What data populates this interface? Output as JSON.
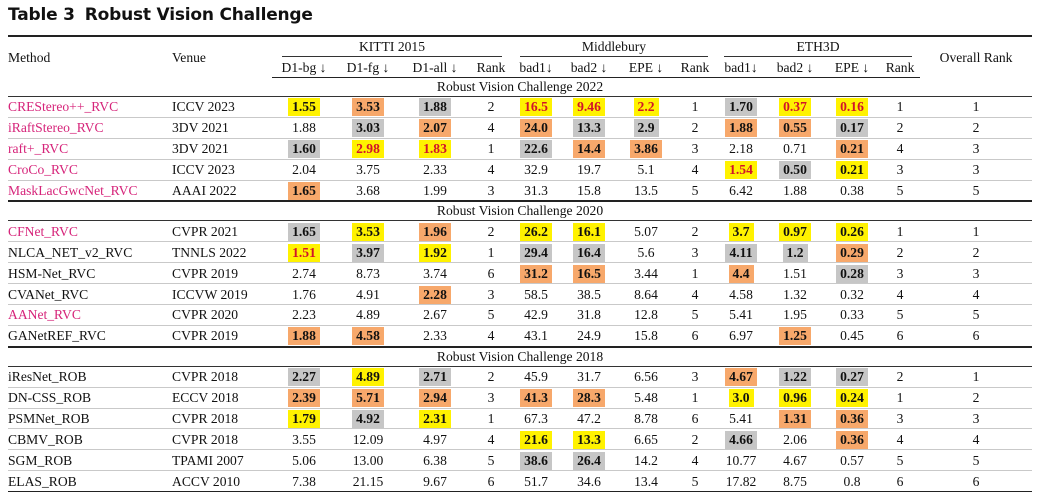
{
  "caption": {
    "label": "Table 3",
    "title": "Robust Vision Challenge"
  },
  "headers": {
    "method": "Method",
    "venue": "Venue",
    "groups": [
      "KITTI 2015",
      "Middlebury",
      "ETH3D"
    ],
    "overall": "Overall Rank",
    "kitti_cols": [
      "D1-bg ↓",
      "D1-fg ↓",
      "D1-all ↓",
      "Rank"
    ],
    "mb_cols": [
      "bad1↓",
      "bad2 ↓",
      "EPE ↓",
      "Rank"
    ],
    "eth_cols": [
      "bad1↓",
      "bad2 ↓",
      "EPE ↓",
      "Rank"
    ]
  },
  "sections": [
    {
      "title": "Robust Vision Challenge 2022",
      "rows": [
        {
          "method": "CREStereo++_RVC",
          "pink": true,
          "venue": "ICCV 2023",
          "cells": [
            {
              "v": "1.55",
              "s": "y",
              "b": true
            },
            {
              "v": "3.53",
              "s": "o",
              "b": true
            },
            {
              "v": "1.88",
              "s": "g",
              "b": true
            },
            {
              "v": "2"
            },
            {
              "v": "16.5",
              "s": "y",
              "b": true,
              "r": true
            },
            {
              "v": "9.46",
              "s": "y",
              "b": true,
              "r": true
            },
            {
              "v": "2.2",
              "s": "y",
              "b": true,
              "r": true
            },
            {
              "v": "1"
            },
            {
              "v": "1.70",
              "s": "g",
              "b": true
            },
            {
              "v": "0.37",
              "s": "y",
              "b": true,
              "r": true
            },
            {
              "v": "0.16",
              "s": "y",
              "b": true,
              "r": true
            },
            {
              "v": "1"
            }
          ],
          "overall": "1"
        },
        {
          "method": "iRaftStereo_RVC",
          "pink": true,
          "venue": "3DV 2021",
          "cells": [
            {
              "v": "1.88"
            },
            {
              "v": "3.03",
              "s": "g",
              "b": true
            },
            {
              "v": "2.07",
              "s": "o",
              "b": true
            },
            {
              "v": "4"
            },
            {
              "v": "24.0",
              "s": "o",
              "b": true
            },
            {
              "v": "13.3",
              "s": "g",
              "b": true
            },
            {
              "v": "2.9",
              "s": "g",
              "b": true
            },
            {
              "v": "2"
            },
            {
              "v": "1.88",
              "s": "o",
              "b": true
            },
            {
              "v": "0.55",
              "s": "o",
              "b": true
            },
            {
              "v": "0.17",
              "s": "g",
              "b": true
            },
            {
              "v": "2"
            }
          ],
          "overall": "2"
        },
        {
          "method": "raft+_RVC",
          "pink": true,
          "venue": "3DV 2021",
          "cells": [
            {
              "v": "1.60",
              "s": "g",
              "b": true
            },
            {
              "v": "2.98",
              "s": "y",
              "b": true,
              "r": true
            },
            {
              "v": "1.83",
              "s": "y",
              "b": true,
              "r": true
            },
            {
              "v": "1"
            },
            {
              "v": "22.6",
              "s": "g",
              "b": true
            },
            {
              "v": "14.4",
              "s": "o",
              "b": true
            },
            {
              "v": "3.86",
              "s": "o",
              "b": true
            },
            {
              "v": "3"
            },
            {
              "v": "2.18"
            },
            {
              "v": "0.71"
            },
            {
              "v": "0.21",
              "s": "o",
              "b": true
            },
            {
              "v": "4"
            }
          ],
          "overall": "3"
        },
        {
          "method": "CroCo_RVC",
          "pink": true,
          "venue": "ICCV 2023",
          "cells": [
            {
              "v": "2.04"
            },
            {
              "v": "3.75"
            },
            {
              "v": "2.33"
            },
            {
              "v": "4"
            },
            {
              "v": "32.9"
            },
            {
              "v": "19.7"
            },
            {
              "v": "5.1"
            },
            {
              "v": "4"
            },
            {
              "v": "1.54",
              "s": "y",
              "b": true,
              "r": true
            },
            {
              "v": "0.50",
              "s": "g",
              "b": true
            },
            {
              "v": "0.21",
              "s": "y",
              "b": true
            },
            {
              "v": "3"
            }
          ],
          "overall": "3"
        },
        {
          "method": "MaskLacGwcNet_RVC",
          "pink": true,
          "venue": "AAAI 2022",
          "cells": [
            {
              "v": "1.65",
              "s": "o",
              "b": true
            },
            {
              "v": "3.68"
            },
            {
              "v": "1.99"
            },
            {
              "v": "3"
            },
            {
              "v": "31.3"
            },
            {
              "v": "15.8"
            },
            {
              "v": "13.5"
            },
            {
              "v": "5"
            },
            {
              "v": "6.42"
            },
            {
              "v": "1.88"
            },
            {
              "v": "0.38"
            },
            {
              "v": "5"
            }
          ],
          "overall": "5"
        }
      ]
    },
    {
      "title": "Robust Vision Challenge 2020",
      "rows": [
        {
          "method": "CFNet_RVC",
          "pink": true,
          "venue": "CVPR 2021",
          "cells": [
            {
              "v": "1.65",
              "s": "g",
              "b": true
            },
            {
              "v": "3.53",
              "s": "y",
              "b": true
            },
            {
              "v": "1.96",
              "s": "o",
              "b": true
            },
            {
              "v": "2"
            },
            {
              "v": "26.2",
              "s": "y",
              "b": true
            },
            {
              "v": "16.1",
              "s": "y",
              "b": true
            },
            {
              "v": "5.07"
            },
            {
              "v": "2"
            },
            {
              "v": "3.7",
              "s": "y",
              "b": true
            },
            {
              "v": "0.97",
              "s": "y",
              "b": true
            },
            {
              "v": "0.26",
              "s": "y",
              "b": true
            },
            {
              "v": "1"
            }
          ],
          "overall": "1"
        },
        {
          "method": "NLCA_NET_v2_RVC",
          "venue": "TNNLS 2022",
          "cells": [
            {
              "v": "1.51",
              "s": "y",
              "b": true,
              "r": true
            },
            {
              "v": "3.97",
              "s": "g",
              "b": true
            },
            {
              "v": "1.92",
              "s": "y",
              "b": true
            },
            {
              "v": "1"
            },
            {
              "v": "29.4",
              "s": "g",
              "b": true
            },
            {
              "v": "16.4",
              "s": "g",
              "b": true
            },
            {
              "v": "5.6"
            },
            {
              "v": "3"
            },
            {
              "v": "4.11",
              "s": "g",
              "b": true
            },
            {
              "v": "1.2",
              "s": "g",
              "b": true
            },
            {
              "v": "0.29",
              "s": "o",
              "b": true
            },
            {
              "v": "2"
            }
          ],
          "overall": "2"
        },
        {
          "method": "HSM-Net_RVC",
          "venue": "CVPR 2019",
          "cells": [
            {
              "v": "2.74"
            },
            {
              "v": "8.73"
            },
            {
              "v": "3.74"
            },
            {
              "v": "6"
            },
            {
              "v": "31.2",
              "s": "o",
              "b": true
            },
            {
              "v": "16.5",
              "s": "o",
              "b": true
            },
            {
              "v": "3.44"
            },
            {
              "v": "1"
            },
            {
              "v": "4.4",
              "s": "o",
              "b": true
            },
            {
              "v": "1.51"
            },
            {
              "v": "0.28",
              "s": "g",
              "b": true
            },
            {
              "v": "3"
            }
          ],
          "overall": "3"
        },
        {
          "method": "CVANet_RVC",
          "venue": "ICCVW 2019",
          "cells": [
            {
              "v": "1.76"
            },
            {
              "v": "4.91"
            },
            {
              "v": "2.28",
              "s": "o",
              "b": true
            },
            {
              "v": "3"
            },
            {
              "v": "58.5"
            },
            {
              "v": "38.5"
            },
            {
              "v": "8.64"
            },
            {
              "v": "4"
            },
            {
              "v": "4.58"
            },
            {
              "v": "1.32"
            },
            {
              "v": "0.32"
            },
            {
              "v": "4"
            }
          ],
          "overall": "4"
        },
        {
          "method": "AANet_RVC",
          "pink": true,
          "venue": "CVPR 2020",
          "cells": [
            {
              "v": "2.23"
            },
            {
              "v": "4.89"
            },
            {
              "v": "2.67"
            },
            {
              "v": "5"
            },
            {
              "v": "42.9"
            },
            {
              "v": "31.8"
            },
            {
              "v": "12.8"
            },
            {
              "v": "5"
            },
            {
              "v": "5.41"
            },
            {
              "v": "1.95"
            },
            {
              "v": "0.33"
            },
            {
              "v": "5"
            }
          ],
          "overall": "5"
        },
        {
          "method": "GANetREF_RVC",
          "venue": "CVPR 2019",
          "cells": [
            {
              "v": "1.88",
              "s": "o",
              "b": true
            },
            {
              "v": "4.58",
              "s": "o",
              "b": true
            },
            {
              "v": "2.33"
            },
            {
              "v": "4"
            },
            {
              "v": "43.1"
            },
            {
              "v": "24.9"
            },
            {
              "v": "15.8"
            },
            {
              "v": "6"
            },
            {
              "v": "6.97"
            },
            {
              "v": "1.25",
              "s": "o",
              "b": true
            },
            {
              "v": "0.45"
            },
            {
              "v": "6"
            }
          ],
          "overall": "6"
        }
      ]
    },
    {
      "title": "Robust Vision Challenge 2018",
      "rows": [
        {
          "method": "iResNet_ROB",
          "venue": "CVPR 2018",
          "cells": [
            {
              "v": "2.27",
              "s": "g",
              "b": true
            },
            {
              "v": "4.89",
              "s": "y",
              "b": true
            },
            {
              "v": "2.71",
              "s": "g",
              "b": true
            },
            {
              "v": "2"
            },
            {
              "v": "45.9"
            },
            {
              "v": "31.7"
            },
            {
              "v": "6.56"
            },
            {
              "v": "3"
            },
            {
              "v": "4.67",
              "s": "o",
              "b": true
            },
            {
              "v": "1.22",
              "s": "g",
              "b": true
            },
            {
              "v": "0.27",
              "s": "g",
              "b": true
            },
            {
              "v": "2"
            }
          ],
          "overall": "1"
        },
        {
          "method": "DN-CSS_ROB",
          "venue": "ECCV 2018",
          "cells": [
            {
              "v": "2.39",
              "s": "o",
              "b": true
            },
            {
              "v": "5.71",
              "s": "o",
              "b": true
            },
            {
              "v": "2.94",
              "s": "o",
              "b": true
            },
            {
              "v": "3"
            },
            {
              "v": "41.3",
              "s": "o",
              "b": true
            },
            {
              "v": "28.3",
              "s": "o",
              "b": true
            },
            {
              "v": "5.48"
            },
            {
              "v": "1"
            },
            {
              "v": "3.0",
              "s": "y",
              "b": true
            },
            {
              "v": "0.96",
              "s": "y",
              "b": true
            },
            {
              "v": "0.24",
              "s": "y",
              "b": true
            },
            {
              "v": "1"
            }
          ],
          "overall": "2"
        },
        {
          "method": "PSMNet_ROB",
          "venue": "CVPR 2018",
          "cells": [
            {
              "v": "1.79",
              "s": "y",
              "b": true
            },
            {
              "v": "4.92",
              "s": "g",
              "b": true
            },
            {
              "v": "2.31",
              "s": "y",
              "b": true
            },
            {
              "v": "1"
            },
            {
              "v": "67.3"
            },
            {
              "v": "47.2"
            },
            {
              "v": "8.78"
            },
            {
              "v": "6"
            },
            {
              "v": "5.41"
            },
            {
              "v": "1.31",
              "s": "o",
              "b": true
            },
            {
              "v": "0.36",
              "s": "o",
              "b": true
            },
            {
              "v": "3"
            }
          ],
          "overall": "3"
        },
        {
          "method": "CBMV_ROB",
          "venue": "CVPR 2018",
          "cells": [
            {
              "v": "3.55"
            },
            {
              "v": "12.09"
            },
            {
              "v": "4.97"
            },
            {
              "v": "4"
            },
            {
              "v": "21.6",
              "s": "y",
              "b": true
            },
            {
              "v": "13.3",
              "s": "y",
              "b": true
            },
            {
              "v": "6.65"
            },
            {
              "v": "2"
            },
            {
              "v": "4.66",
              "s": "g",
              "b": true
            },
            {
              "v": "2.06"
            },
            {
              "v": "0.36",
              "s": "o",
              "b": true
            },
            {
              "v": "4"
            }
          ],
          "overall": "4"
        },
        {
          "method": "SGM_ROB",
          "venue": "TPAMI 2007",
          "cells": [
            {
              "v": "5.06"
            },
            {
              "v": "13.00"
            },
            {
              "v": "6.38"
            },
            {
              "v": "5"
            },
            {
              "v": "38.6",
              "s": "g",
              "b": true
            },
            {
              "v": "26.4",
              "s": "g",
              "b": true
            },
            {
              "v": "14.2"
            },
            {
              "v": "4"
            },
            {
              "v": "10.77"
            },
            {
              "v": "4.67"
            },
            {
              "v": "0.57"
            },
            {
              "v": "5"
            }
          ],
          "overall": "5"
        },
        {
          "method": "ELAS_ROB",
          "venue": "ACCV 2010",
          "cells": [
            {
              "v": "7.38"
            },
            {
              "v": "21.15"
            },
            {
              "v": "9.67"
            },
            {
              "v": "6"
            },
            {
              "v": "51.7"
            },
            {
              "v": "34.6"
            },
            {
              "v": "13.4"
            },
            {
              "v": "5"
            },
            {
              "v": "17.82"
            },
            {
              "v": "8.75"
            },
            {
              "v": "0.8"
            },
            {
              "v": "6"
            }
          ],
          "overall": "6"
        }
      ]
    }
  ],
  "colors": {
    "yellow": "#fff200",
    "orange": "#f7a86b",
    "gray": "#c6c6c6",
    "pink": "#d6247a",
    "red": "#d1132a"
  }
}
